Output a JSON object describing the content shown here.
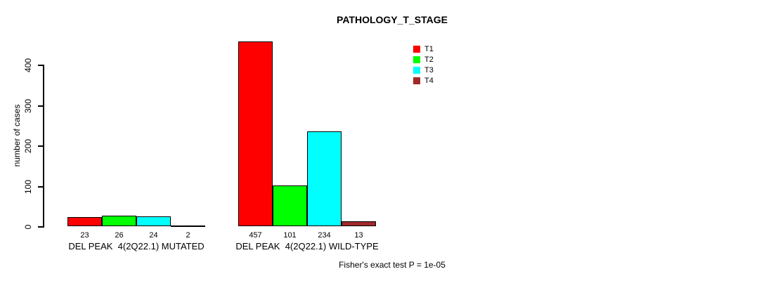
{
  "title": "PATHOLOGY_T_STAGE",
  "y_axis_label": "number of cases",
  "footer": "Fisher's exact test P = 1e-05",
  "chart_data": {
    "type": "bar",
    "title": "PATHOLOGY_T_STAGE",
    "ylabel": "number of cases",
    "xlabel": "",
    "categories": [
      "DEL PEAK  4(2Q22.1) MUTATED",
      "DEL PEAK  4(2Q22.1) WILD-TYPE"
    ],
    "series": [
      {
        "name": "T1",
        "color": "#FF0000",
        "values": [
          23,
          457
        ]
      },
      {
        "name": "T2",
        "color": "#00FF00",
        "values": [
          26,
          101
        ]
      },
      {
        "name": "T3",
        "color": "#00FFFF",
        "values": [
          24,
          234
        ]
      },
      {
        "name": "T4",
        "color": "#A02A2A",
        "values": [
          2,
          13
        ]
      }
    ],
    "bar_value_labels": [
      [
        23,
        26,
        24,
        2
      ],
      [
        457,
        101,
        234,
        13
      ]
    ],
    "yticks": [
      0,
      100,
      200,
      300,
      400
    ],
    "ylim": [
      0,
      400
    ],
    "grid": false,
    "legend_position": "top-right",
    "legend_entries": [
      "T1",
      "T2",
      "T3",
      "T4"
    ],
    "annotation": "Fisher's exact test P = 1e-05"
  }
}
